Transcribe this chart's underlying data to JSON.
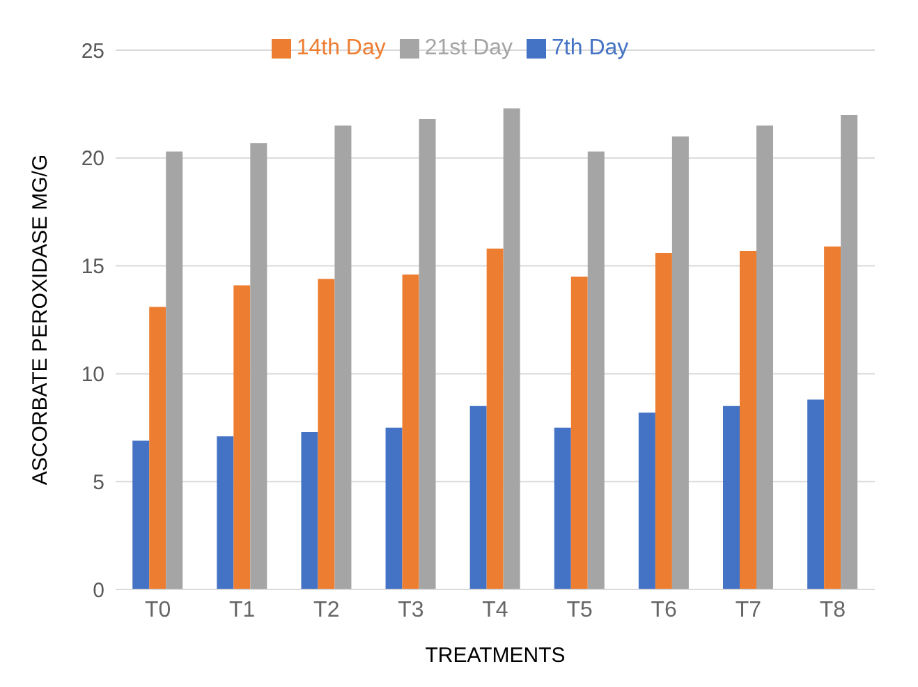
{
  "chart_data": {
    "type": "bar",
    "xlabel": "TREATMENTS",
    "ylabel": "ASCORBATE PEROXIDASE MG/G",
    "categories": [
      "T0",
      "T1",
      "T2",
      "T3",
      "T4",
      "T5",
      "T6",
      "T7",
      "T8"
    ],
    "series": [
      {
        "name": "7th Day",
        "color": "#4472c4",
        "values": [
          6.9,
          7.1,
          7.3,
          7.5,
          8.5,
          7.5,
          8.2,
          8.5,
          8.8
        ]
      },
      {
        "name": "14th Day",
        "color": "#ed7d31",
        "values": [
          13.1,
          14.1,
          14.4,
          14.6,
          15.8,
          14.5,
          15.6,
          15.7,
          15.9
        ]
      },
      {
        "name": "21st Day",
        "color": "#a5a5a5",
        "values": [
          20.3,
          20.7,
          21.5,
          21.8,
          22.3,
          20.3,
          21,
          21.5,
          22
        ]
      }
    ],
    "ylim": [
      0,
      25
    ],
    "yticks": [
      0,
      5,
      10,
      15,
      20,
      25
    ],
    "grid": "y",
    "legend": "top"
  }
}
